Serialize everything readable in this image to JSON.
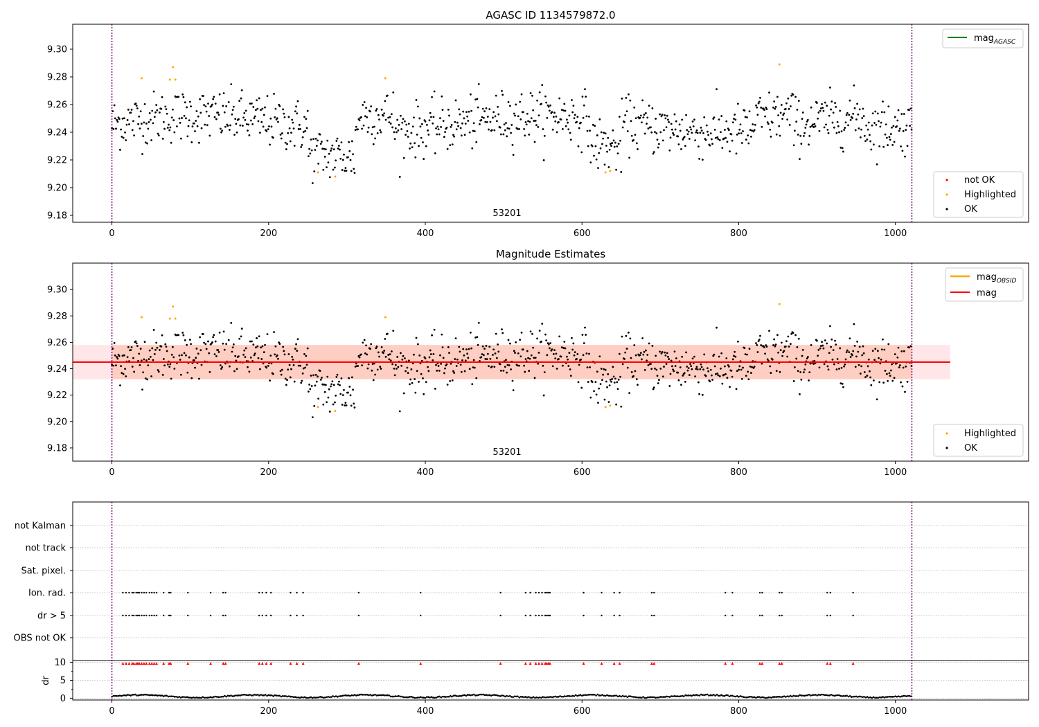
{
  "chart_data": [
    {
      "id": "agasc",
      "type": "scatter",
      "title": "AGASC ID 1134579872.0",
      "annotation": "53201",
      "xlim": [
        -50,
        1170
      ],
      "ylim": [
        9.175,
        9.318
      ],
      "x_ticks": [
        0,
        200,
        400,
        600,
        800,
        1000
      ],
      "y_ticks": [
        9.18,
        9.2,
        9.22,
        9.24,
        9.26,
        9.28,
        9.3
      ],
      "y_tick_labels": [
        "9.18",
        "9.20",
        "9.22",
        "9.24",
        "9.26",
        "9.28",
        "9.30"
      ],
      "vlines": [
        0,
        1021
      ],
      "vline_color": "#800080",
      "lines": [
        {
          "name": "mag_AGASC",
          "color": "#008000"
        }
      ],
      "legend_lines": [
        {
          "main": "mag",
          "sub": "AGASC",
          "color": "#008000"
        }
      ],
      "legend_points": [
        {
          "label": "not OK",
          "color": "#ff0000"
        },
        {
          "label": "Highlighted",
          "color": "#ffa500"
        },
        {
          "label": "OK",
          "color": "#000000"
        }
      ],
      "highlighted_points": [
        [
          38,
          9.279
        ],
        [
          74,
          9.278
        ],
        [
          78,
          9.287
        ],
        [
          81,
          9.278
        ],
        [
          263,
          9.211
        ],
        [
          285,
          9.208
        ],
        [
          349,
          9.279
        ],
        [
          630,
          9.211
        ],
        [
          636,
          9.212
        ],
        [
          852,
          9.289
        ]
      ],
      "ok_series_note": "Dense light curve of ~1000 OK points: mean about 9.245, scatter about 0.01, x from 0 to 1021"
    },
    {
      "id": "mag-estimates",
      "type": "scatter",
      "title": "Magnitude Estimates",
      "annotation": "53201",
      "xlim": [
        -50,
        1170
      ],
      "ylim": [
        9.17,
        9.32
      ],
      "x_ticks": [
        0,
        200,
        400,
        600,
        800,
        1000
      ],
      "y_ticks": [
        9.18,
        9.2,
        9.22,
        9.24,
        9.26,
        9.28,
        9.3
      ],
      "y_tick_labels": [
        "9.18",
        "9.20",
        "9.22",
        "9.24",
        "9.26",
        "9.28",
        "9.30"
      ],
      "vlines": [
        0,
        1021
      ],
      "mean_mag": 9.245,
      "band": {
        "low": 9.232,
        "high": 9.258,
        "x_end": 1070
      },
      "legend_lines": [
        {
          "main": "mag",
          "sub": "OBSID",
          "color": "#ffa500"
        },
        {
          "main": "mag",
          "sub": "",
          "color": "#ff0000"
        }
      ],
      "legend_points": [
        {
          "label": "Highlighted",
          "color": "#ffa500"
        },
        {
          "label": "OK",
          "color": "#000000"
        }
      ],
      "highlighted_points": [
        [
          38,
          9.279
        ],
        [
          74,
          9.278
        ],
        [
          78,
          9.287
        ],
        [
          81,
          9.278
        ],
        [
          263,
          9.211
        ],
        [
          285,
          9.208
        ],
        [
          349,
          9.279
        ],
        [
          630,
          9.211
        ],
        [
          636,
          9.212
        ],
        [
          852,
          9.289
        ]
      ]
    },
    {
      "id": "flags",
      "type": "scatter",
      "xlim": [
        -50,
        1170
      ],
      "x_ticks": [
        0,
        200,
        400,
        600,
        800,
        1000
      ],
      "categories": [
        "not Kalman",
        "not track",
        "Sat. pixel.",
        "Ion. rad.",
        "dr > 5",
        "OBS not OK"
      ],
      "flag_x": [
        14,
        18,
        22,
        26,
        28,
        31,
        33,
        35,
        38,
        41,
        44,
        48,
        51,
        54,
        57,
        66,
        73,
        75,
        97,
        126,
        142,
        145,
        188,
        192,
        197,
        203,
        228,
        236,
        244,
        315,
        394,
        496,
        528,
        534,
        541,
        545,
        549,
        553,
        555,
        557,
        559,
        602,
        625,
        641,
        648,
        689,
        692,
        783,
        792,
        827,
        830,
        852,
        855,
        913,
        917,
        946
      ],
      "flag_rows": [
        "Ion. rad.",
        "dr > 5"
      ],
      "dr_ylabel": "dr",
      "dr_ylim": [
        -0.5,
        10.5
      ],
      "dr_ticks": [
        0,
        5,
        10
      ],
      "dr_tick_labels": [
        "0",
        "5",
        "10"
      ],
      "dr_marker_value": 9.7,
      "dr_baseline_note": "dr values near 0-1 for all samples"
    }
  ]
}
